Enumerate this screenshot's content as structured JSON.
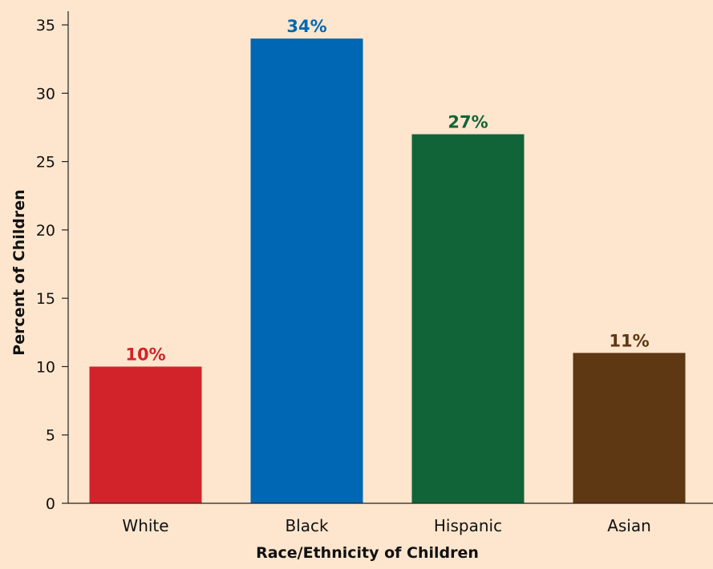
{
  "chart_data": {
    "type": "bar",
    "categories": [
      "White",
      "Black",
      "Hispanic",
      "Asian"
    ],
    "values": [
      10,
      34,
      27,
      11
    ],
    "data_labels": [
      "10%",
      "34%",
      "27%",
      "11%"
    ],
    "colors": [
      "#d2232a",
      "#0067b4",
      "#116438",
      "#5e3713"
    ],
    "title": "",
    "xlabel": "Race/Ethnicity of Children",
    "ylabel": "Percent of Children",
    "ylim": [
      0,
      36
    ],
    "yticks": [
      0,
      5,
      10,
      15,
      20,
      25,
      30,
      35
    ],
    "grid": false,
    "legend": "none",
    "background": "#fde6cd"
  }
}
